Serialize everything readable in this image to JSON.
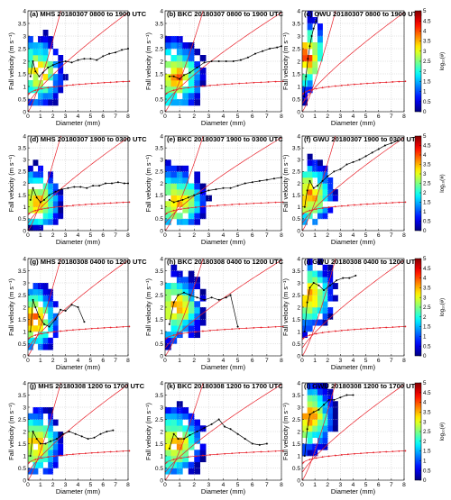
{
  "figure": {
    "xlabel": "Diameter (mm)",
    "ylabel": "Fall velocity (m s⁻¹)",
    "colorbar_label": "log₁₀(#)",
    "colorbar_ticks": [
      "0",
      "0.5",
      "1",
      "1.5",
      "2",
      "2.5",
      "3",
      "3.5",
      "4",
      "4.5",
      "5"
    ],
    "xticks": [
      "0",
      "1",
      "2",
      "3",
      "4",
      "5",
      "6",
      "7",
      "8"
    ],
    "yticks": [
      "0",
      "0.5",
      "1",
      "1.5",
      "2",
      "2.5",
      "3",
      "3.5",
      "4"
    ]
  },
  "chart_data": [
    {
      "type": "heatmap",
      "panel": "a",
      "title": "(a) MHS 20180307 0800 to 1900 UTC",
      "xlabel": "Diameter (mm)",
      "ylabel": "Fall velocity (m s⁻¹)",
      "xlim": [
        0,
        8
      ],
      "ylim": [
        0,
        4
      ],
      "clim": [
        0,
        5
      ],
      "colorbar": false,
      "cover": 1.0,
      "peak": [
        1.2,
        1.55
      ],
      "mean_curve": [
        [
          0.2,
          1.4
        ],
        [
          0.4,
          2.0
        ],
        [
          0.6,
          1.6
        ],
        [
          0.9,
          1.4
        ],
        [
          1.2,
          1.55
        ],
        [
          1.6,
          1.75
        ],
        [
          2.0,
          1.85
        ],
        [
          2.5,
          1.95
        ],
        [
          3,
          2.0
        ],
        [
          3.5,
          1.95
        ],
        [
          4,
          2.05
        ],
        [
          4.5,
          2.1
        ],
        [
          5,
          2.1
        ],
        [
          5.5,
          2.05
        ],
        [
          6,
          2.2
        ],
        [
          6.5,
          2.3
        ],
        [
          7,
          2.35
        ],
        [
          7.5,
          2.45
        ],
        [
          8,
          2.5
        ]
      ]
    },
    {
      "type": "heatmap",
      "panel": "b",
      "title": "(b) BKC 20180307 0800 to 1900 UTC",
      "xlabel": "Diameter (mm)",
      "ylabel": "Fall velocity (m s⁻¹)",
      "xlim": [
        0,
        8
      ],
      "ylim": [
        0,
        4
      ],
      "clim": [
        0,
        5
      ],
      "colorbar": false,
      "cover": 1.0,
      "peak": [
        1.0,
        1.4
      ],
      "mean_curve": [
        [
          0.3,
          1.4
        ],
        [
          0.6,
          1.4
        ],
        [
          1.0,
          1.3
        ],
        [
          1.3,
          1.45
        ],
        [
          1.7,
          1.55
        ],
        [
          2.2,
          1.75
        ],
        [
          2.7,
          1.95
        ],
        [
          3.2,
          2.0
        ],
        [
          3.7,
          2.0
        ],
        [
          4.2,
          2.0
        ],
        [
          4.7,
          2.0
        ],
        [
          5.2,
          2.05
        ],
        [
          5.7,
          2.15
        ],
        [
          6.2,
          2.3
        ],
        [
          6.7,
          2.4
        ],
        [
          7.2,
          2.5
        ],
        [
          7.7,
          2.55
        ],
        [
          8,
          2.6
        ]
      ]
    },
    {
      "type": "heatmap",
      "panel": "c",
      "title": "(c) GWU 20180307 0800 to 1900 UTC",
      "xlabel": "Diameter (mm)",
      "ylabel": "Fall velocity (m s⁻¹)",
      "xlim": [
        0,
        8
      ],
      "ylim": [
        0,
        4
      ],
      "clim": [
        0,
        5
      ],
      "colorbar": true,
      "cover": 0.3,
      "peak": [
        0.5,
        2.2
      ],
      "mean_curve": [
        [
          0.15,
          0.6
        ],
        [
          0.3,
          1.4
        ],
        [
          0.45,
          2.1
        ],
        [
          0.6,
          2.6
        ],
        [
          0.75,
          3.0
        ],
        [
          0.9,
          3.3
        ],
        [
          1.1,
          3.6
        ],
        [
          1.3,
          3.9
        ]
      ]
    },
    {
      "type": "heatmap",
      "panel": "d",
      "title": "(d) MHS 20180307 1900 to 0300 UTC",
      "xlabel": "Diameter (mm)",
      "ylabel": "Fall velocity (m s⁻¹)",
      "xlim": [
        0,
        8
      ],
      "ylim": [
        0,
        4
      ],
      "clim": [
        0,
        5
      ],
      "colorbar": false,
      "cover": 1.0,
      "peak": [
        1.0,
        1.2
      ],
      "mean_curve": [
        [
          0.2,
          1.3
        ],
        [
          0.4,
          1.8
        ],
        [
          0.7,
          1.4
        ],
        [
          1.0,
          1.2
        ],
        [
          1.3,
          1.3
        ],
        [
          1.7,
          1.5
        ],
        [
          2.2,
          1.65
        ],
        [
          2.7,
          1.75
        ],
        [
          3.2,
          1.8
        ],
        [
          3.7,
          1.85
        ],
        [
          4.2,
          1.85
        ],
        [
          4.7,
          1.8
        ],
        [
          5.2,
          1.9
        ],
        [
          5.7,
          1.9
        ],
        [
          6.2,
          2.0
        ],
        [
          6.7,
          2.0
        ],
        [
          7.2,
          2.05
        ],
        [
          7.7,
          2.0
        ],
        [
          8,
          2.0
        ]
      ]
    },
    {
      "type": "heatmap",
      "panel": "e",
      "title": "(e) BKC 20180307 1900 to 0300 UTC",
      "xlabel": "Diameter (mm)",
      "ylabel": "Fall velocity (m s⁻¹)",
      "xlim": [
        0,
        8
      ],
      "ylim": [
        0,
        4
      ],
      "clim": [
        0,
        5
      ],
      "colorbar": false,
      "cover": 1.0,
      "peak": [
        1.2,
        1.25
      ],
      "mean_curve": [
        [
          0.3,
          1.3
        ],
        [
          0.6,
          1.2
        ],
        [
          0.9,
          1.25
        ],
        [
          1.2,
          1.3
        ],
        [
          1.6,
          1.4
        ],
        [
          2.0,
          1.5
        ],
        [
          2.5,
          1.6
        ],
        [
          3.0,
          1.7
        ],
        [
          3.5,
          1.75
        ],
        [
          4.0,
          1.8
        ],
        [
          4.5,
          1.8
        ],
        [
          5.0,
          1.9
        ],
        [
          5.5,
          2.0
        ],
        [
          6.0,
          2.05
        ],
        [
          6.5,
          2.1
        ],
        [
          7.0,
          2.15
        ],
        [
          7.5,
          2.2
        ],
        [
          8,
          2.25
        ]
      ]
    },
    {
      "type": "heatmap",
      "panel": "f",
      "title": "(f) GWU 20180307 1900 to 0300 UTC",
      "xlabel": "Diameter (mm)",
      "ylabel": "Fall velocity (m s⁻¹)",
      "xlim": [
        0,
        8
      ],
      "ylim": [
        0,
        4
      ],
      "clim": [
        0,
        5
      ],
      "colorbar": true,
      "cover": 1.0,
      "peak": [
        0.8,
        1.5
      ],
      "mean_curve": [
        [
          0.2,
          1.0
        ],
        [
          0.4,
          1.7
        ],
        [
          0.6,
          2.1
        ],
        [
          0.9,
          1.8
        ],
        [
          1.2,
          1.9
        ],
        [
          1.6,
          2.1
        ],
        [
          2.0,
          2.3
        ],
        [
          2.5,
          2.5
        ],
        [
          3.0,
          2.6
        ],
        [
          3.5,
          2.8
        ],
        [
          4.0,
          2.9
        ],
        [
          4.5,
          3.0
        ],
        [
          5.0,
          3.15
        ],
        [
          5.5,
          3.3
        ],
        [
          6.0,
          3.45
        ],
        [
          6.5,
          3.6
        ],
        [
          7.0,
          3.7
        ],
        [
          7.5,
          3.8
        ]
      ]
    },
    {
      "type": "heatmap",
      "panel": "g",
      "title": "(g) MHS 20180308 0400 to 1200 UTC",
      "xlabel": "Diameter (mm)",
      "ylabel": "Fall velocity (m s⁻¹)",
      "xlim": [
        0,
        8
      ],
      "ylim": [
        0,
        4
      ],
      "clim": [
        0,
        5
      ],
      "colorbar": false,
      "cover": 0.7,
      "peak": [
        0.7,
        1.5
      ],
      "mean_curve": [
        [
          0.2,
          1.0
        ],
        [
          0.4,
          2.3
        ],
        [
          0.6,
          2.0
        ],
        [
          0.9,
          1.6
        ],
        [
          1.3,
          1.3
        ],
        [
          1.7,
          1.2
        ],
        [
          2.2,
          1.5
        ],
        [
          2.6,
          1.9
        ],
        [
          3.0,
          1.85
        ],
        [
          3.5,
          2.1
        ],
        [
          4.0,
          2.0
        ],
        [
          4.5,
          1.4
        ]
      ]
    },
    {
      "type": "heatmap",
      "panel": "h",
      "title": "(h) BKC 20180308 0400 to 1200 UTC",
      "xlabel": "Diameter (mm)",
      "ylabel": "Fall velocity (m s⁻¹)",
      "xlim": [
        0,
        8
      ],
      "ylim": [
        0,
        4
      ],
      "clim": [
        0,
        5
      ],
      "colorbar": false,
      "cover": 0.8,
      "peak": [
        1.0,
        2.0
      ],
      "mean_curve": [
        [
          0.3,
          1.3
        ],
        [
          0.6,
          2.2
        ],
        [
          0.9,
          2.5
        ],
        [
          1.3,
          2.6
        ],
        [
          1.7,
          2.5
        ],
        [
          2.2,
          2.4
        ],
        [
          2.7,
          2.3
        ],
        [
          3.2,
          2.4
        ],
        [
          3.7,
          2.3
        ],
        [
          4.2,
          2.4
        ],
        [
          4.5,
          2.5
        ],
        [
          5.0,
          1.2
        ]
      ]
    },
    {
      "type": "heatmap",
      "panel": "i",
      "title": "(i) GWU 20180308 0400 to 1200 UTC",
      "xlabel": "Diameter (mm)",
      "ylabel": "Fall velocity (m s⁻¹)",
      "xlim": [
        0,
        8
      ],
      "ylim": [
        0,
        4
      ],
      "clim": [
        0,
        5
      ],
      "colorbar": true,
      "cover": 0.85,
      "peak": [
        0.8,
        2.5
      ],
      "mean_curve": [
        [
          0.2,
          1.0
        ],
        [
          0.4,
          2.2
        ],
        [
          0.6,
          2.8
        ],
        [
          0.9,
          3.0
        ],
        [
          1.3,
          2.9
        ],
        [
          1.7,
          2.7
        ],
        [
          2.2,
          2.9
        ],
        [
          2.7,
          3.1
        ],
        [
          3.2,
          3.2
        ],
        [
          3.7,
          3.2
        ],
        [
          4.2,
          3.3
        ]
      ]
    },
    {
      "type": "heatmap",
      "panel": "j",
      "title": "(j) MHS 20180308 1200 to 1700 UTC",
      "xlabel": "Diameter (mm)",
      "ylabel": "Fall velocity (m s⁻¹)",
      "xlim": [
        0,
        8
      ],
      "ylim": [
        0,
        4
      ],
      "clim": [
        0,
        5
      ],
      "colorbar": false,
      "cover": 0.9,
      "peak": [
        1.0,
        1.5
      ],
      "mean_curve": [
        [
          0.2,
          1.0
        ],
        [
          0.4,
          2.0
        ],
        [
          0.7,
          1.7
        ],
        [
          1.0,
          1.5
        ],
        [
          1.4,
          1.5
        ],
        [
          1.8,
          1.6
        ],
        [
          2.3,
          1.7
        ],
        [
          2.8,
          1.9
        ],
        [
          3.3,
          2.0
        ],
        [
          3.8,
          1.9
        ],
        [
          4.3,
          1.8
        ],
        [
          4.8,
          1.7
        ],
        [
          5.3,
          1.75
        ],
        [
          5.8,
          1.9
        ],
        [
          6.3,
          2.0
        ],
        [
          6.8,
          2.05
        ]
      ]
    },
    {
      "type": "heatmap",
      "panel": "k",
      "title": "(k) BKC 20180308 1200 to 1700 UTC",
      "xlabel": "Diameter (mm)",
      "ylabel": "Fall velocity (m s⁻¹)",
      "xlim": [
        0,
        8
      ],
      "ylim": [
        0,
        4
      ],
      "clim": [
        0,
        5
      ],
      "colorbar": false,
      "cover": 0.85,
      "peak": [
        1.0,
        1.5
      ],
      "mean_curve": [
        [
          0.3,
          1.3
        ],
        [
          0.6,
          1.9
        ],
        [
          0.9,
          1.7
        ],
        [
          1.3,
          1.7
        ],
        [
          1.7,
          1.85
        ],
        [
          2.2,
          2.0
        ],
        [
          2.7,
          2.15
        ],
        [
          3.2,
          2.3
        ],
        [
          3.7,
          2.5
        ],
        [
          4.1,
          2.2
        ],
        [
          4.5,
          2.1
        ],
        [
          5.0,
          1.9
        ],
        [
          5.5,
          1.7
        ],
        [
          6.0,
          1.5
        ],
        [
          6.5,
          1.45
        ],
        [
          7.0,
          1.5
        ]
      ]
    },
    {
      "type": "heatmap",
      "panel": "l",
      "title": "(l) GWU 20180308 1200 to 1700 UTC",
      "xlabel": "Diameter (mm)",
      "ylabel": "Fall velocity (m s⁻¹)",
      "xlim": [
        0,
        8
      ],
      "ylim": [
        0,
        4
      ],
      "clim": [
        0,
        5
      ],
      "colorbar": true,
      "cover": 0.5,
      "peak": [
        0.8,
        2.6
      ],
      "mean_curve": [
        [
          0.2,
          1.0
        ],
        [
          0.4,
          2.1
        ],
        [
          0.6,
          2.7
        ],
        [
          0.9,
          2.8
        ],
        [
          1.3,
          2.9
        ],
        [
          1.7,
          3.1
        ],
        [
          2.1,
          3.3
        ],
        [
          2.5,
          3.3
        ],
        [
          3.0,
          3.4
        ],
        [
          3.5,
          3.5
        ],
        [
          4.0,
          3.5
        ]
      ]
    }
  ]
}
